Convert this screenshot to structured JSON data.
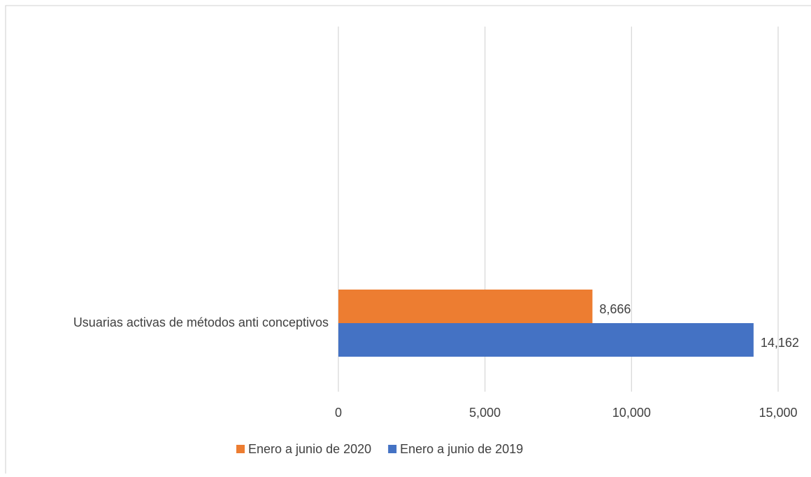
{
  "chart_data": {
    "type": "hbar",
    "categories": [
      "Usuarias activas de métodos anti conceptivos"
    ],
    "series": [
      {
        "name": "Enero a junio de 2020",
        "color": "#ed7d31",
        "values": [
          8666
        ],
        "value_labels": [
          "8,666"
        ]
      },
      {
        "name": "Enero a junio de 2019",
        "color": "#4472c4",
        "values": [
          14162
        ],
        "value_labels": [
          "14,162"
        ]
      }
    ],
    "xlim": [
      0,
      15000
    ],
    "xticks": [
      0,
      {
        "value": 5000,
        "label": "5,000"
      },
      {
        "value": 10000,
        "label": "10,000"
      },
      {
        "value": 15000,
        "label": "15,000"
      }
    ],
    "grid": true,
    "legend": "bottom"
  }
}
